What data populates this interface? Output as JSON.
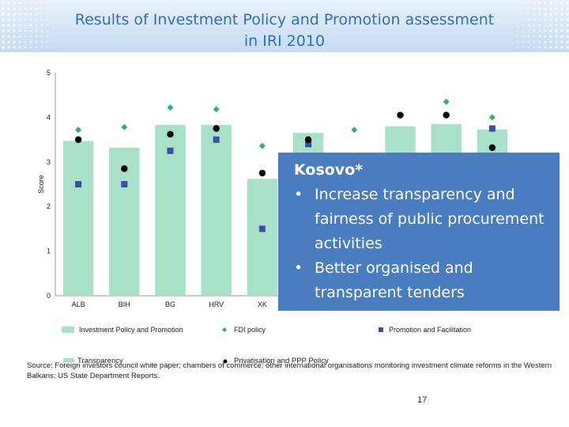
{
  "slide": {
    "title_line1": "Results of Investment Policy and Promotion assessment",
    "title_line2": "in IRI 2010",
    "source_text": "Source: Foreign investors council white paper; chambers of commerce; other international organisations monitoring investment climate reforms in the Western Balkans; US State Department Reports.",
    "overlay_transparency": "Transparency",
    "overlay_privatisation": "Privatisation and PPP Policy",
    "page_number": "17",
    "callout": {
      "heading": "Kosovo*",
      "bullet_glyph": "•",
      "bullets": [
        "Increase transparency and fairness of public procurement activities",
        "Better organised and transparent tenders"
      ]
    }
  },
  "colors": {
    "bar": "#a8e0c8",
    "fdi": "#2eb36b",
    "promotion": "#3a4fa8",
    "transparency": "#000000",
    "title": "#2f6fb8",
    "callout_bg": "#4a7dbf"
  },
  "chart_data": {
    "type": "bar",
    "ylabel": "Score",
    "ylim": [
      0,
      5
    ],
    "yticks": [
      0,
      1,
      2,
      3,
      4,
      5
    ],
    "categories": [
      "ALB",
      "BIH",
      "BG",
      "HRV",
      "XK",
      "",
      "",
      "",
      "",
      ""
    ],
    "series": [
      {
        "name": "Investment Policy and Promotion",
        "kind": "bar",
        "values": [
          3.47,
          3.32,
          3.83,
          3.83,
          2.62,
          3.65,
          null,
          3.8,
          3.85,
          3.73
        ]
      },
      {
        "name": "FDI policy",
        "kind": "diamond",
        "values": [
          3.72,
          3.78,
          4.22,
          4.18,
          3.36,
          null,
          3.72,
          null,
          4.35,
          4.0
        ]
      },
      {
        "name": "Promotion and Facilitation",
        "kind": "square",
        "values": [
          2.5,
          2.5,
          3.25,
          3.5,
          1.5,
          3.4,
          null,
          null,
          null,
          3.75
        ]
      },
      {
        "name": "Transparency",
        "kind": "circle",
        "values": [
          3.5,
          2.85,
          3.62,
          3.75,
          2.75,
          3.5,
          null,
          4.05,
          4.05,
          3.32
        ]
      }
    ],
    "legend": {
      "bar": "Investment Policy and Promotion",
      "fdi": "FDI policy",
      "promotion": "Promotion and Facilitation"
    },
    "grid": false,
    "legend_position": "bottom"
  }
}
